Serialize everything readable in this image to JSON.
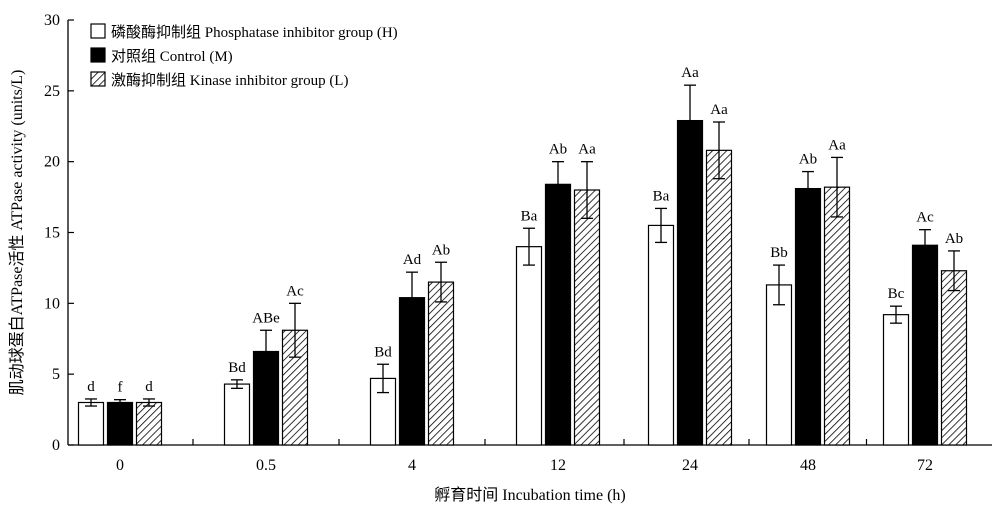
{
  "chart_data": {
    "type": "bar",
    "xlabel": "孵育时间 Incubation time (h)",
    "ylabel": "肌动球蛋白ATPase活性 ATPase activity (units/L)",
    "ylim": [
      0,
      30
    ],
    "yticks": [
      0,
      5,
      10,
      15,
      20,
      25,
      30
    ],
    "categories": [
      "0",
      "0.5",
      "4",
      "12",
      "24",
      "48",
      "72"
    ],
    "legend_position": "top-left",
    "series": [
      {
        "name": "磷酸酶抑制组 Phosphatase inhibitor group (H)",
        "style": "white",
        "values": [
          3.0,
          4.3,
          4.7,
          14.0,
          15.5,
          11.3,
          9.2
        ],
        "errors": [
          0.25,
          0.3,
          1.0,
          1.3,
          1.2,
          1.4,
          0.6
        ],
        "labels": [
          "d",
          "Bd",
          "Bd",
          "Ba",
          "Ba",
          "Bb",
          "Bc"
        ]
      },
      {
        "name": "对照组 Control (M)",
        "style": "black",
        "values": [
          3.0,
          6.6,
          10.4,
          18.4,
          22.9,
          18.1,
          14.1
        ],
        "errors": [
          0.2,
          1.5,
          1.8,
          1.6,
          2.5,
          1.2,
          1.1
        ],
        "labels": [
          "f",
          "ABe",
          "Ad",
          "Ab",
          "Aa",
          "Ab",
          "Ac"
        ]
      },
      {
        "name": "激酶抑制组 Kinase inhibitor group (L)",
        "style": "hatched",
        "values": [
          3.0,
          8.1,
          11.5,
          18.0,
          20.8,
          18.2,
          12.3
        ],
        "errors": [
          0.25,
          1.9,
          1.4,
          2.0,
          2.0,
          2.1,
          1.4
        ],
        "labels": [
          "d",
          "Ac",
          "Ab",
          "Aa",
          "Aa",
          "Aa",
          "Ab"
        ]
      }
    ]
  }
}
